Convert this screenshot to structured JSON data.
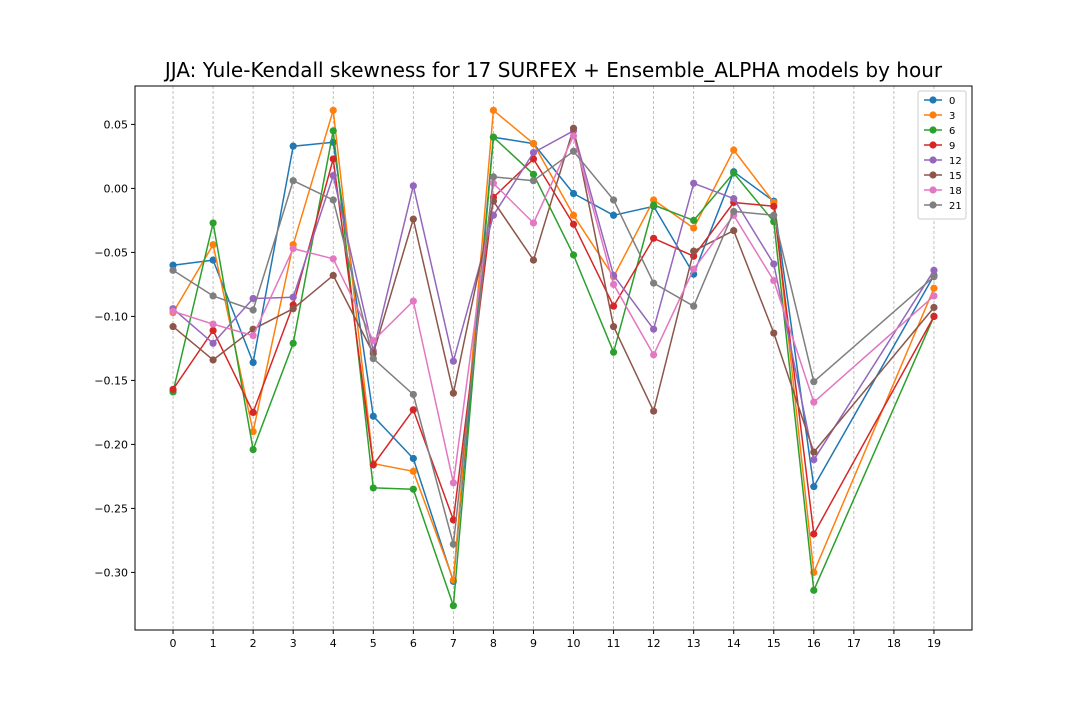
{
  "chart_data": {
    "type": "line",
    "title": "JJA: Yule-Kendall skewness for 17 SURFEX + Ensemble_ALPHA models by hour",
    "xlabel": "",
    "ylabel": "",
    "x": [
      0,
      1,
      2,
      3,
      4,
      5,
      6,
      7,
      8,
      9,
      10,
      11,
      12,
      13,
      14,
      15,
      16,
      19
    ],
    "x_ticks": [
      0,
      1,
      2,
      3,
      4,
      5,
      6,
      7,
      8,
      9,
      10,
      11,
      12,
      13,
      14,
      15,
      16,
      17,
      18,
      19
    ],
    "y_ticks": [
      0.05,
      0.0,
      -0.05,
      -0.1,
      -0.15,
      -0.2,
      -0.25,
      -0.3
    ],
    "y_tick_labels": [
      "0.05",
      "0.00",
      "−0.05",
      "−0.10",
      "−0.15",
      "−0.20",
      "−0.25",
      "−0.30"
    ],
    "xlim": [
      -0.95,
      19.95
    ],
    "ylim": [
      -0.345,
      0.08
    ],
    "grid": "vertical dashed",
    "legend_position": "top-right",
    "series": [
      {
        "name": "0",
        "color": "#1f77b4",
        "values": [
          -0.06,
          -0.056,
          -0.136,
          0.033,
          0.036,
          -0.178,
          -0.211,
          -0.307,
          0.04,
          0.035,
          -0.004,
          -0.021,
          -0.014,
          -0.067,
          0.013,
          -0.01,
          -0.233,
          -0.068
        ]
      },
      {
        "name": "3",
        "color": "#ff7f0e",
        "values": [
          -0.097,
          -0.044,
          -0.19,
          -0.044,
          0.061,
          -0.215,
          -0.221,
          -0.306,
          0.061,
          0.035,
          -0.021,
          -0.069,
          -0.009,
          -0.031,
          0.03,
          -0.011,
          -0.3,
          -0.078
        ]
      },
      {
        "name": "6",
        "color": "#2ca02c",
        "values": [
          -0.159,
          -0.027,
          -0.204,
          -0.121,
          0.045,
          -0.234,
          -0.235,
          -0.326,
          0.04,
          0.011,
          -0.052,
          -0.128,
          -0.013,
          -0.025,
          0.012,
          -0.026,
          -0.314,
          -0.1
        ]
      },
      {
        "name": "9",
        "color": "#d62728",
        "values": [
          -0.157,
          -0.111,
          -0.175,
          -0.091,
          0.023,
          -0.216,
          -0.173,
          -0.259,
          -0.007,
          0.023,
          -0.028,
          -0.092,
          -0.039,
          -0.053,
          -0.011,
          -0.014,
          -0.27,
          -0.1
        ]
      },
      {
        "name": "12",
        "color": "#9467bd",
        "values": [
          -0.094,
          -0.121,
          -0.086,
          -0.085,
          0.01,
          -0.127,
          0.002,
          -0.135,
          -0.021,
          0.028,
          0.045,
          -0.068,
          -0.11,
          0.004,
          -0.008,
          -0.059,
          -0.212,
          -0.064
        ]
      },
      {
        "name": "15",
        "color": "#8c564b",
        "values": [
          -0.108,
          -0.134,
          -0.11,
          -0.094,
          -0.068,
          -0.129,
          -0.024,
          -0.16,
          -0.01,
          -0.056,
          0.047,
          -0.108,
          -0.174,
          -0.049,
          -0.033,
          -0.113,
          -0.206,
          -0.093
        ]
      },
      {
        "name": "18",
        "color": "#e377c2",
        "values": [
          -0.096,
          -0.106,
          -0.115,
          -0.047,
          -0.055,
          -0.119,
          -0.088,
          -0.23,
          0.004,
          -0.027,
          0.041,
          -0.075,
          -0.13,
          -0.063,
          -0.021,
          -0.072,
          -0.167,
          -0.084
        ]
      },
      {
        "name": "21",
        "color": "#7f7f7f",
        "values": [
          -0.064,
          -0.084,
          -0.095,
          0.006,
          -0.009,
          -0.133,
          -0.161,
          -0.278,
          0.009,
          0.006,
          0.029,
          -0.009,
          -0.074,
          -0.092,
          -0.018,
          -0.021,
          -0.151,
          -0.069
        ]
      }
    ]
  }
}
